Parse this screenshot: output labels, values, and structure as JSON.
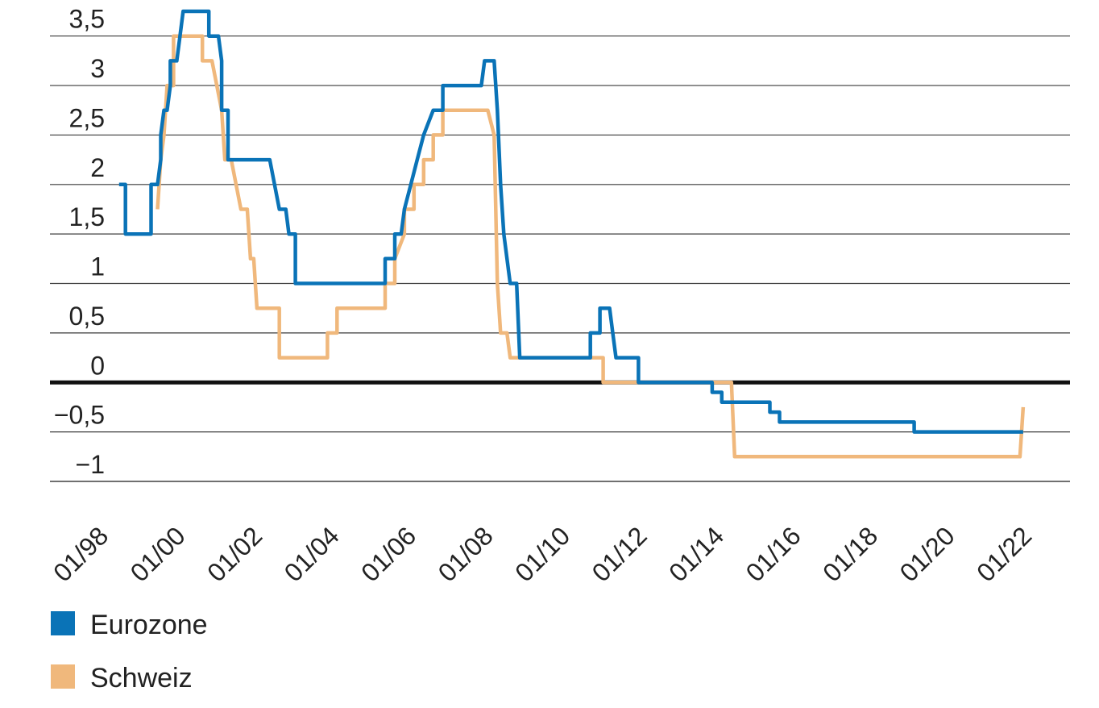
{
  "chart_data": {
    "type": "line",
    "title": "",
    "xlabel": "",
    "ylabel": "",
    "x_ticks": [
      "01/98",
      "01/00",
      "01/02",
      "01/04",
      "01/06",
      "01/08",
      "01/10",
      "01/12",
      "01/14",
      "01/16",
      "01/18",
      "01/20",
      "01/22"
    ],
    "y_ticks": [
      {
        "value": 3.5,
        "label": "3,5"
      },
      {
        "value": 3,
        "label": "3"
      },
      {
        "value": 2.5,
        "label": "2,5"
      },
      {
        "value": 2,
        "label": "2"
      },
      {
        "value": 1.5,
        "label": "1,5"
      },
      {
        "value": 1,
        "label": "1"
      },
      {
        "value": 0.5,
        "label": "0,5"
      },
      {
        "value": 0,
        "label": "0"
      },
      {
        "value": -0.5,
        "label": "−0,5"
      },
      {
        "value": -1,
        "label": "−1"
      }
    ],
    "xlim": [
      "1998-01",
      "2022-12"
    ],
    "ylim": [
      -1.0,
      3.75
    ],
    "grid": true,
    "legend_position": "bottom-left",
    "series": [
      {
        "name": "Eurozone",
        "color": "#0a73b7",
        "points": [
          [
            "1999-01",
            2.0
          ],
          [
            "1999-03",
            2.0
          ],
          [
            "1999-03",
            1.5
          ],
          [
            "1999-11",
            1.5
          ],
          [
            "1999-11",
            2.0
          ],
          [
            "2000-01",
            2.0
          ],
          [
            "2000-02",
            2.25
          ],
          [
            "2000-02",
            2.5
          ],
          [
            "2000-03",
            2.75
          ],
          [
            "2000-04",
            2.75
          ],
          [
            "2000-05",
            3.0
          ],
          [
            "2000-05",
            3.25
          ],
          [
            "2000-07",
            3.25
          ],
          [
            "2000-08",
            3.5
          ],
          [
            "2000-09",
            3.75
          ],
          [
            "2001-05",
            3.75
          ],
          [
            "2001-05",
            3.5
          ],
          [
            "2001-08",
            3.5
          ],
          [
            "2001-09",
            3.25
          ],
          [
            "2001-09",
            2.75
          ],
          [
            "2001-11",
            2.75
          ],
          [
            "2001-11",
            2.25
          ],
          [
            "2002-12",
            2.25
          ],
          [
            "2003-03",
            1.75
          ],
          [
            "2003-05",
            1.75
          ],
          [
            "2003-06",
            1.5
          ],
          [
            "2003-08",
            1.5
          ],
          [
            "2003-08",
            1.0
          ],
          [
            "2005-12",
            1.0
          ],
          [
            "2005-12",
            1.25
          ],
          [
            "2006-03",
            1.25
          ],
          [
            "2006-03",
            1.5
          ],
          [
            "2006-05",
            1.5
          ],
          [
            "2006-06",
            1.75
          ],
          [
            "2006-08",
            2.0
          ],
          [
            "2006-10",
            2.25
          ],
          [
            "2006-12",
            2.5
          ],
          [
            "2007-03",
            2.75
          ],
          [
            "2007-06",
            2.75
          ],
          [
            "2007-06",
            3.0
          ],
          [
            "2008-06",
            3.0
          ],
          [
            "2008-07",
            3.25
          ],
          [
            "2008-10",
            3.25
          ],
          [
            "2008-11",
            2.75
          ],
          [
            "2008-12",
            2.0
          ],
          [
            "2009-01",
            1.5
          ],
          [
            "2009-03",
            1.0
          ],
          [
            "2009-05",
            1.0
          ],
          [
            "2009-06",
            0.25
          ],
          [
            "2011-04",
            0.25
          ],
          [
            "2011-04",
            0.5
          ],
          [
            "2011-07",
            0.5
          ],
          [
            "2011-07",
            0.75
          ],
          [
            "2011-10",
            0.75
          ],
          [
            "2011-11",
            0.5
          ],
          [
            "2011-12",
            0.25
          ],
          [
            "2012-07",
            0.25
          ],
          [
            "2012-07",
            0.0
          ],
          [
            "2014-06",
            0.0
          ],
          [
            "2014-06",
            -0.1
          ],
          [
            "2014-09",
            -0.1
          ],
          [
            "2014-09",
            -0.2
          ],
          [
            "2015-12",
            -0.2
          ],
          [
            "2015-12",
            -0.3
          ],
          [
            "2016-03",
            -0.3
          ],
          [
            "2016-03",
            -0.4
          ],
          [
            "2019-09",
            -0.4
          ],
          [
            "2019-09",
            -0.5
          ],
          [
            "2022-07",
            -0.5
          ]
        ]
      },
      {
        "name": "Schweiz",
        "color": "#f0b87c",
        "points": [
          [
            "2000-01",
            1.75
          ],
          [
            "2000-02",
            2.25
          ],
          [
            "2000-03",
            2.5
          ],
          [
            "2000-04",
            3.0
          ],
          [
            "2000-06",
            3.0
          ],
          [
            "2000-06",
            3.5
          ],
          [
            "2001-03",
            3.5
          ],
          [
            "2001-03",
            3.25
          ],
          [
            "2001-06",
            3.25
          ],
          [
            "2001-09",
            2.75
          ],
          [
            "2001-10",
            2.25
          ],
          [
            "2001-12",
            2.25
          ],
          [
            "2002-03",
            1.75
          ],
          [
            "2002-05",
            1.75
          ],
          [
            "2002-06",
            1.25
          ],
          [
            "2002-07",
            1.25
          ],
          [
            "2002-08",
            0.75
          ],
          [
            "2003-03",
            0.75
          ],
          [
            "2003-03",
            0.25
          ],
          [
            "2004-06",
            0.25
          ],
          [
            "2004-06",
            0.5
          ],
          [
            "2004-09",
            0.5
          ],
          [
            "2004-09",
            0.75
          ],
          [
            "2005-12",
            0.75
          ],
          [
            "2005-12",
            1.0
          ],
          [
            "2006-03",
            1.0
          ],
          [
            "2006-03",
            1.25
          ],
          [
            "2006-06",
            1.5
          ],
          [
            "2006-06",
            1.75
          ],
          [
            "2006-09",
            1.75
          ],
          [
            "2006-09",
            2.0
          ],
          [
            "2006-12",
            2.0
          ],
          [
            "2006-12",
            2.25
          ],
          [
            "2007-03",
            2.25
          ],
          [
            "2007-03",
            2.5
          ],
          [
            "2007-06",
            2.5
          ],
          [
            "2007-06",
            2.75
          ],
          [
            "2008-08",
            2.75
          ],
          [
            "2008-10",
            2.5
          ],
          [
            "2008-11",
            1.0
          ],
          [
            "2008-12",
            0.5
          ],
          [
            "2009-02",
            0.5
          ],
          [
            "2009-03",
            0.25
          ],
          [
            "2011-08",
            0.25
          ],
          [
            "2011-08",
            0.0
          ],
          [
            "2014-12",
            0.0
          ],
          [
            "2015-01",
            -0.75
          ],
          [
            "2022-06",
            -0.75
          ],
          [
            "2022-07",
            -0.25
          ]
        ]
      }
    ]
  }
}
